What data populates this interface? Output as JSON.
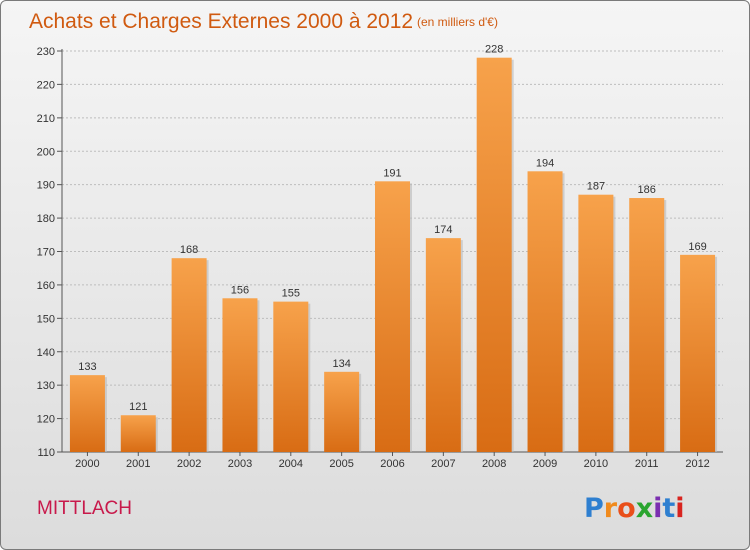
{
  "title": "Achats et Charges Externes 2000 à 2012",
  "unit": "(en milliers d'€)",
  "commune": "MITTLACH",
  "logo": {
    "text": "Proxiti",
    "letters": [
      "P",
      "r",
      "o",
      "x",
      "i",
      "t",
      "i"
    ],
    "colors": [
      "#2e7fd0",
      "#f08a1c",
      "#e94f1a",
      "#2aa52f",
      "#7b2fb0",
      "#2e7fd0",
      "#d8241f"
    ]
  },
  "colors": {
    "bar_top": "#f7a24b",
    "bar_bottom": "#d86c14",
    "title": "#d05a10",
    "commune": "#c8194b"
  },
  "chart_data": {
    "type": "bar",
    "title": "Achats et Charges Externes 2000 à 2012",
    "subtitle": "(en milliers d'€)",
    "categories": [
      "2000",
      "2001",
      "2002",
      "2003",
      "2004",
      "2005",
      "2006",
      "2007",
      "2008",
      "2009",
      "2010",
      "2011",
      "2012"
    ],
    "values": [
      133,
      121,
      168,
      156,
      155,
      134,
      191,
      174,
      228,
      194,
      187,
      186,
      169
    ],
    "ylim": [
      110,
      230
    ],
    "yticks": [
      110,
      120,
      130,
      140,
      150,
      160,
      170,
      180,
      190,
      200,
      210,
      220,
      230
    ],
    "grid": true
  }
}
